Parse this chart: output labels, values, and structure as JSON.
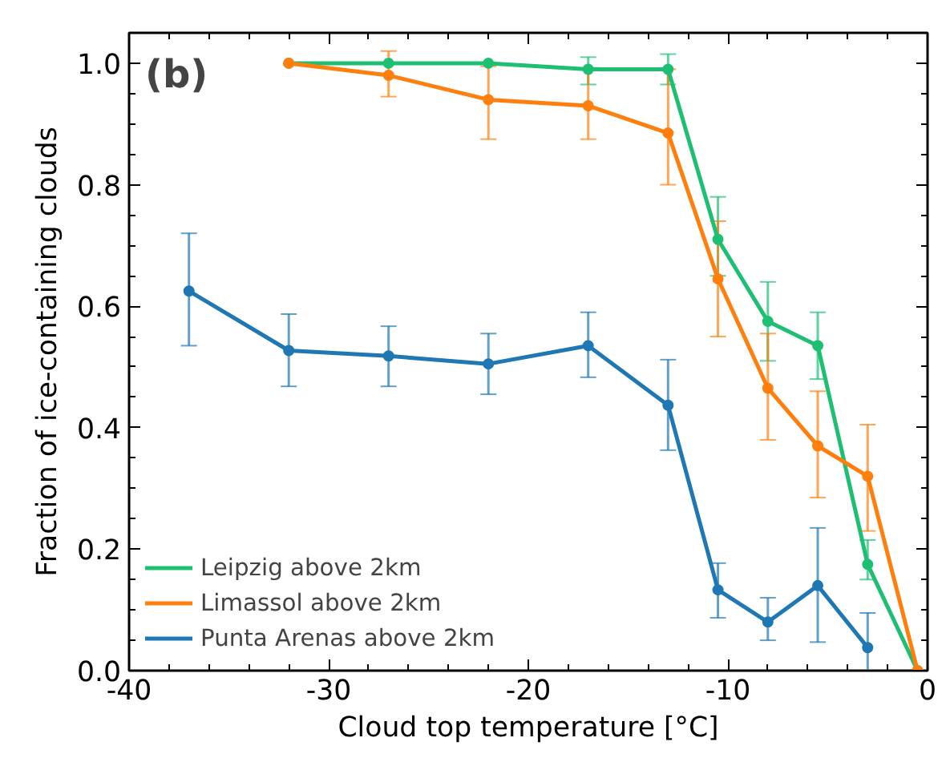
{
  "chart_data": {
    "type": "line",
    "xlabel": "Cloud top temperature [°C]",
    "ylabel": "Fraction of ice-containing clouds",
    "annotations": [
      "(b)"
    ],
    "xlim": [
      -40,
      0
    ],
    "xticks": [
      -40,
      {
        "value": -38,
        "label": null
      },
      {
        "value": -36,
        "label": null
      },
      {
        "value": -34,
        "label": null
      },
      {
        "value": -32,
        "label": null
      },
      -30,
      {
        "value": -28,
        "label": null
      },
      {
        "value": -26,
        "label": null
      },
      {
        "value": -24,
        "label": null
      },
      {
        "value": -22,
        "label": null
      },
      -20,
      {
        "value": -18,
        "label": null
      },
      {
        "value": -16,
        "label": null
      },
      {
        "value": -14,
        "label": null
      },
      {
        "value": -12,
        "label": null
      },
      -10,
      {
        "value": -8,
        "label": null
      },
      {
        "value": -6,
        "label": null
      },
      {
        "value": -4,
        "label": null
      },
      {
        "value": -2,
        "label": null
      },
      0
    ],
    "ylim": [
      0,
      1.05
    ],
    "yticks": [
      {
        "value": 0,
        "label": "0.0"
      },
      {
        "value": 0.05,
        "label": null
      },
      {
        "value": 0.1,
        "label": null
      },
      {
        "value": 0.15,
        "label": null
      },
      0.2,
      {
        "value": 0.25,
        "label": null
      },
      {
        "value": 0.3,
        "label": null
      },
      {
        "value": 0.35,
        "label": null
      },
      0.4,
      {
        "value": 0.45,
        "label": null
      },
      {
        "value": 0.5,
        "label": null
      },
      {
        "value": 0.55,
        "label": null
      },
      0.6,
      {
        "value": 0.65,
        "label": null
      },
      {
        "value": 0.7,
        "label": null
      },
      {
        "value": 0.75,
        "label": null
      },
      0.8,
      {
        "value": 0.85,
        "label": null
      },
      {
        "value": 0.9,
        "label": null
      },
      {
        "value": 0.95,
        "label": null
      },
      {
        "value": 1.0,
        "label": "1.0"
      }
    ],
    "grid": false,
    "legend": "bottom left",
    "marker": "circle",
    "line_style": "solid",
    "series": [
      {
        "name": "Leipzig above 2km",
        "color": "#1fbf73",
        "x": [
          -32,
          -27,
          -22,
          -17,
          -13,
          -10.5,
          -8,
          -5.5,
          -3,
          -0.5
        ],
        "values": [
          1.0,
          1.0,
          1.0,
          0.99,
          0.99,
          0.71,
          0.575,
          0.535,
          0.175,
          0.0
        ],
        "errors": [
          null,
          null,
          null,
          [
            0.965,
            1.01
          ],
          [
            0.965,
            1.015
          ],
          [
            0.65,
            0.78
          ],
          [
            0.51,
            0.64
          ],
          [
            0.48,
            0.59
          ],
          [
            0.15,
            0.215
          ],
          null
        ]
      },
      {
        "name": "Limassol above 2km",
        "color": "#ff7f0e",
        "x": [
          -32,
          -27,
          -22,
          -17,
          -13,
          -10.5,
          -8,
          -5.5,
          -3,
          -0.5
        ],
        "values": [
          1.0,
          0.98,
          0.94,
          0.93,
          0.885,
          0.645,
          0.465,
          0.37,
          0.32,
          0.0
        ],
        "errors": [
          null,
          [
            0.945,
            1.02
          ],
          [
            0.875,
            0.995
          ],
          [
            0.875,
            0.99
          ],
          [
            0.8,
            0.99
          ],
          [
            0.55,
            0.74
          ],
          [
            0.38,
            0.555
          ],
          [
            0.285,
            0.46
          ],
          [
            0.23,
            0.405
          ],
          null
        ]
      },
      {
        "name": "Punta Arenas above 2km",
        "color": "#1f77b4",
        "x": [
          -37,
          -32,
          -27,
          -22,
          -17,
          -13,
          -10.5,
          -8,
          -5.5,
          -3
        ],
        "values": [
          0.625,
          0.527,
          0.518,
          0.505,
          0.535,
          0.437,
          0.133,
          0.08,
          0.14,
          0.038
        ],
        "errors": [
          [
            0.535,
            0.72
          ],
          [
            0.468,
            0.587
          ],
          [
            0.468,
            0.567
          ],
          [
            0.455,
            0.555
          ],
          [
            0.483,
            0.59
          ],
          [
            0.363,
            0.512
          ],
          [
            0.087,
            0.177
          ],
          [
            0.05,
            0.12
          ],
          [
            0.047,
            0.235
          ],
          [
            0.0,
            0.095
          ]
        ]
      }
    ]
  }
}
